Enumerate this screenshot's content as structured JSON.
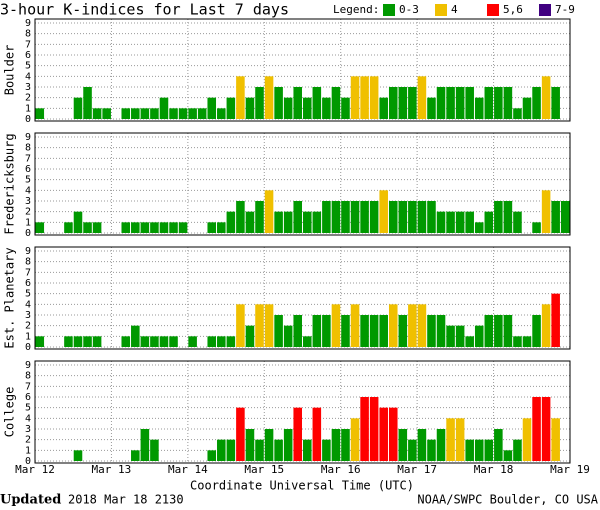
{
  "title": "3-hour K-indices for Last 7 days",
  "legend": {
    "title": "Legend:",
    "items": [
      {
        "label": "0-3",
        "color": "#009900"
      },
      {
        "label": "4",
        "color": "#f0c000"
      },
      {
        "label": "5,6",
        "color": "#ff0000"
      },
      {
        "label": "7-9",
        "color": "#400080"
      }
    ]
  },
  "xticks": [
    "Mar 12",
    "Mar 13",
    "Mar 14",
    "Mar 15",
    "Mar 16",
    "Mar 17",
    "Mar 18",
    "Mar 19"
  ],
  "xlabel": "Coordinate Universal Time (UTC)",
  "footer": {
    "updated_label": "Updated",
    "updated": "2018 Mar 18 2130",
    "credit": "NOAA/SWPC Boulder, CO USA"
  },
  "chart_data": [
    {
      "type": "bar",
      "ylabel": "Boulder",
      "ylim": [
        0,
        9
      ],
      "yticks": [
        0,
        1,
        2,
        3,
        4,
        5,
        6,
        7,
        8,
        9
      ],
      "grid": true,
      "values": [
        1,
        0,
        0,
        0,
        2,
        3,
        1,
        1,
        0,
        1,
        1,
        1,
        1,
        2,
        1,
        1,
        1,
        1,
        2,
        1,
        2,
        4,
        2,
        3,
        4,
        3,
        2,
        3,
        2,
        3,
        2,
        3,
        2,
        4,
        4,
        4,
        2,
        3,
        3,
        3,
        4,
        2,
        3,
        3,
        3,
        3,
        2,
        3,
        3,
        3,
        1,
        2,
        3,
        4,
        3,
        0
      ],
      "colors": [
        "#009900",
        "#009900",
        "#009900",
        "#009900",
        "#009900",
        "#009900",
        "#009900",
        "#009900",
        "#009900",
        "#009900",
        "#009900",
        "#009900",
        "#009900",
        "#009900",
        "#009900",
        "#009900",
        "#009900",
        "#009900",
        "#009900",
        "#009900",
        "#009900",
        "#f0c000",
        "#009900",
        "#009900",
        "#f0c000",
        "#009900",
        "#009900",
        "#009900",
        "#009900",
        "#009900",
        "#009900",
        "#009900",
        "#009900",
        "#f0c000",
        "#f0c000",
        "#f0c000",
        "#009900",
        "#009900",
        "#009900",
        "#009900",
        "#f0c000",
        "#009900",
        "#009900",
        "#009900",
        "#009900",
        "#009900",
        "#009900",
        "#009900",
        "#009900",
        "#009900",
        "#009900",
        "#009900",
        "#009900",
        "#f0c000",
        "#009900",
        "#009900"
      ]
    },
    {
      "type": "bar",
      "ylabel": "Fredericksburg",
      "ylim": [
        0,
        9
      ],
      "yticks": [
        0,
        1,
        2,
        3,
        4,
        5,
        6,
        7,
        8,
        9
      ],
      "grid": true,
      "values": [
        1,
        0,
        0,
        1,
        2,
        1,
        1,
        0,
        0,
        1,
        1,
        1,
        1,
        1,
        1,
        1,
        0,
        0,
        1,
        1,
        2,
        3,
        2,
        3,
        4,
        2,
        2,
        3,
        2,
        2,
        3,
        3,
        3,
        3,
        3,
        3,
        4,
        3,
        3,
        3,
        3,
        3,
        2,
        2,
        2,
        2,
        1,
        2,
        3,
        3,
        2,
        0,
        1,
        4,
        3,
        3
      ],
      "colors": [
        "#009900",
        "#009900",
        "#009900",
        "#009900",
        "#009900",
        "#009900",
        "#009900",
        "#009900",
        "#009900",
        "#009900",
        "#009900",
        "#009900",
        "#009900",
        "#009900",
        "#009900",
        "#009900",
        "#009900",
        "#009900",
        "#009900",
        "#009900",
        "#009900",
        "#009900",
        "#009900",
        "#009900",
        "#f0c000",
        "#009900",
        "#009900",
        "#009900",
        "#009900",
        "#009900",
        "#009900",
        "#009900",
        "#009900",
        "#009900",
        "#009900",
        "#009900",
        "#f0c000",
        "#009900",
        "#009900",
        "#009900",
        "#009900",
        "#009900",
        "#009900",
        "#009900",
        "#009900",
        "#009900",
        "#009900",
        "#009900",
        "#009900",
        "#009900",
        "#009900",
        "#009900",
        "#009900",
        "#f0c000",
        "#009900",
        "#009900"
      ]
    },
    {
      "type": "bar",
      "ylabel": "Est. Planetary",
      "ylim": [
        0,
        9
      ],
      "yticks": [
        0,
        1,
        2,
        3,
        4,
        5,
        6,
        7,
        8,
        9
      ],
      "grid": true,
      "values": [
        1,
        0,
        0,
        1,
        1,
        1,
        1,
        0,
        0,
        1,
        2,
        1,
        1,
        1,
        1,
        0,
        1,
        0,
        1,
        1,
        1,
        4,
        2,
        4,
        4,
        3,
        2,
        3,
        1,
        3,
        3,
        4,
        3,
        4,
        3,
        3,
        3,
        4,
        3,
        4,
        4,
        3,
        3,
        2,
        2,
        1,
        2,
        3,
        3,
        3,
        1,
        1,
        3,
        4,
        5,
        0
      ],
      "colors": [
        "#009900",
        "#009900",
        "#009900",
        "#009900",
        "#009900",
        "#009900",
        "#009900",
        "#009900",
        "#009900",
        "#009900",
        "#009900",
        "#009900",
        "#009900",
        "#009900",
        "#009900",
        "#009900",
        "#009900",
        "#009900",
        "#009900",
        "#009900",
        "#009900",
        "#f0c000",
        "#009900",
        "#f0c000",
        "#f0c000",
        "#009900",
        "#009900",
        "#009900",
        "#009900",
        "#009900",
        "#009900",
        "#f0c000",
        "#009900",
        "#f0c000",
        "#009900",
        "#009900",
        "#009900",
        "#f0c000",
        "#009900",
        "#f0c000",
        "#f0c000",
        "#009900",
        "#009900",
        "#009900",
        "#009900",
        "#009900",
        "#009900",
        "#009900",
        "#009900",
        "#009900",
        "#009900",
        "#009900",
        "#009900",
        "#f0c000",
        "#ff0000",
        "#009900"
      ]
    },
    {
      "type": "bar",
      "ylabel": "College",
      "ylim": [
        0,
        9
      ],
      "yticks": [
        0,
        1,
        2,
        3,
        4,
        5,
        6,
        7,
        8,
        9
      ],
      "grid": true,
      "values": [
        0,
        0,
        0,
        0,
        1,
        0,
        0,
        0,
        0,
        0,
        1,
        3,
        2,
        0,
        0,
        0,
        0,
        0,
        1,
        2,
        2,
        5,
        3,
        2,
        3,
        2,
        3,
        5,
        2,
        5,
        2,
        3,
        3,
        4,
        6,
        6,
        5,
        5,
        3,
        2,
        3,
        2,
        3,
        4,
        4,
        2,
        2,
        2,
        3,
        1,
        2,
        4,
        6,
        6,
        4,
        0
      ],
      "colors": [
        "#009900",
        "#009900",
        "#009900",
        "#009900",
        "#009900",
        "#009900",
        "#009900",
        "#009900",
        "#009900",
        "#009900",
        "#009900",
        "#009900",
        "#009900",
        "#009900",
        "#009900",
        "#009900",
        "#009900",
        "#009900",
        "#009900",
        "#009900",
        "#009900",
        "#ff0000",
        "#009900",
        "#009900",
        "#009900",
        "#009900",
        "#009900",
        "#ff0000",
        "#009900",
        "#ff0000",
        "#009900",
        "#009900",
        "#009900",
        "#f0c000",
        "#ff0000",
        "#ff0000",
        "#ff0000",
        "#ff0000",
        "#009900",
        "#009900",
        "#009900",
        "#009900",
        "#009900",
        "#f0c000",
        "#f0c000",
        "#009900",
        "#009900",
        "#009900",
        "#009900",
        "#009900",
        "#009900",
        "#f0c000",
        "#ff0000",
        "#ff0000",
        "#f0c000",
        "#009900"
      ]
    }
  ]
}
